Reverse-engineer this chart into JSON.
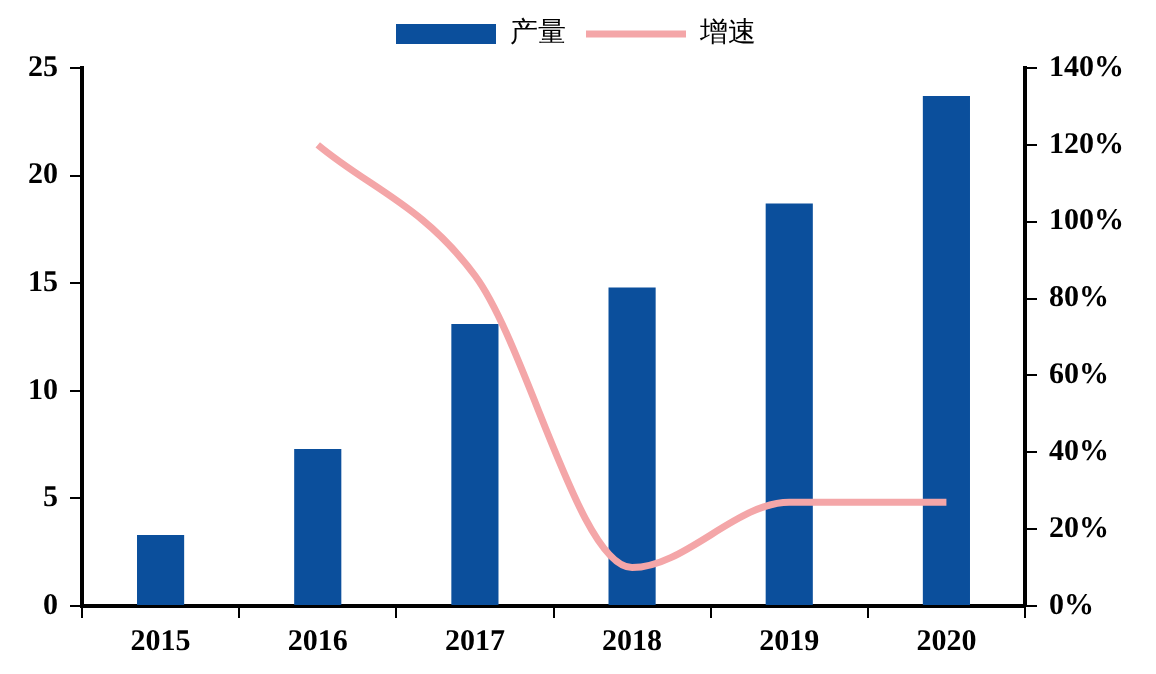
{
  "chart_data": {
    "type": "bar",
    "categories": [
      "2015",
      "2016",
      "2017",
      "2018",
      "2019",
      "2020"
    ],
    "series": [
      {
        "name": "产量",
        "color": "#0b4f9c",
        "values": [
          3.3,
          7.3,
          13.1,
          14.8,
          18.7,
          23.7
        ]
      },
      {
        "name": "增速",
        "type": "line",
        "axis": "y2",
        "color": "#f4a6a8",
        "marker": "none",
        "values": [
          null,
          120,
          86,
          10,
          27,
          27
        ]
      }
    ],
    "ylim": [
      0,
      25
    ],
    "yticks": [
      0,
      5,
      10,
      15,
      20,
      25
    ],
    "y2lim": [
      0,
      140
    ],
    "y2ticks": [
      {
        "value": 0,
        "label": "0%"
      },
      {
        "value": 20,
        "label": "20%"
      },
      {
        "value": 40,
        "label": "40%"
      },
      {
        "value": 60,
        "label": "60%"
      },
      {
        "value": 80,
        "label": "80%"
      },
      {
        "value": 100,
        "label": "100%"
      },
      {
        "value": 120,
        "label": "120%"
      },
      {
        "value": 140,
        "label": "140%"
      }
    ],
    "grid": false,
    "legend": "top"
  }
}
